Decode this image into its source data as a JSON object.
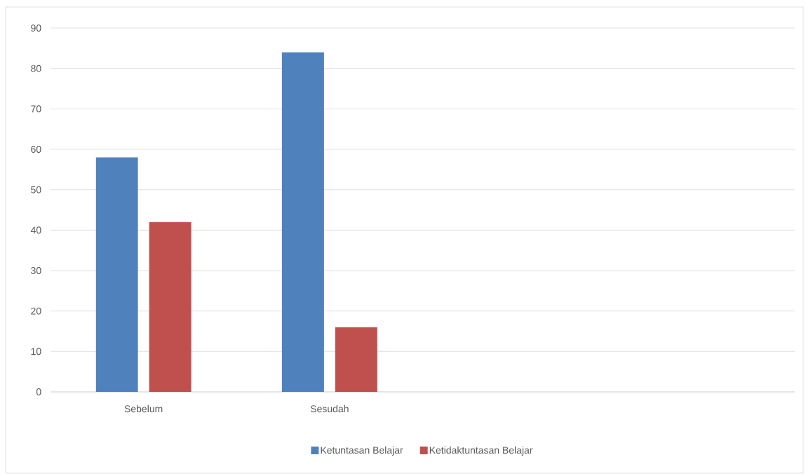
{
  "chart_data": {
    "type": "bar",
    "categories": [
      "Sebelum",
      "Sesudah",
      null,
      null
    ],
    "series": [
      {
        "name": "Ketuntasan Belajar",
        "color": "#4f81bd",
        "values": [
          58,
          84,
          null,
          null
        ]
      },
      {
        "name": "Ketidaktuntasan Belajar",
        "color": "#c0504d",
        "values": [
          42,
          16,
          null,
          null
        ]
      }
    ],
    "ylim": [
      0,
      90
    ],
    "yticks": [
      0,
      10,
      20,
      30,
      40,
      50,
      60,
      70,
      80,
      90
    ],
    "grid": "y",
    "legend": "bottom"
  }
}
